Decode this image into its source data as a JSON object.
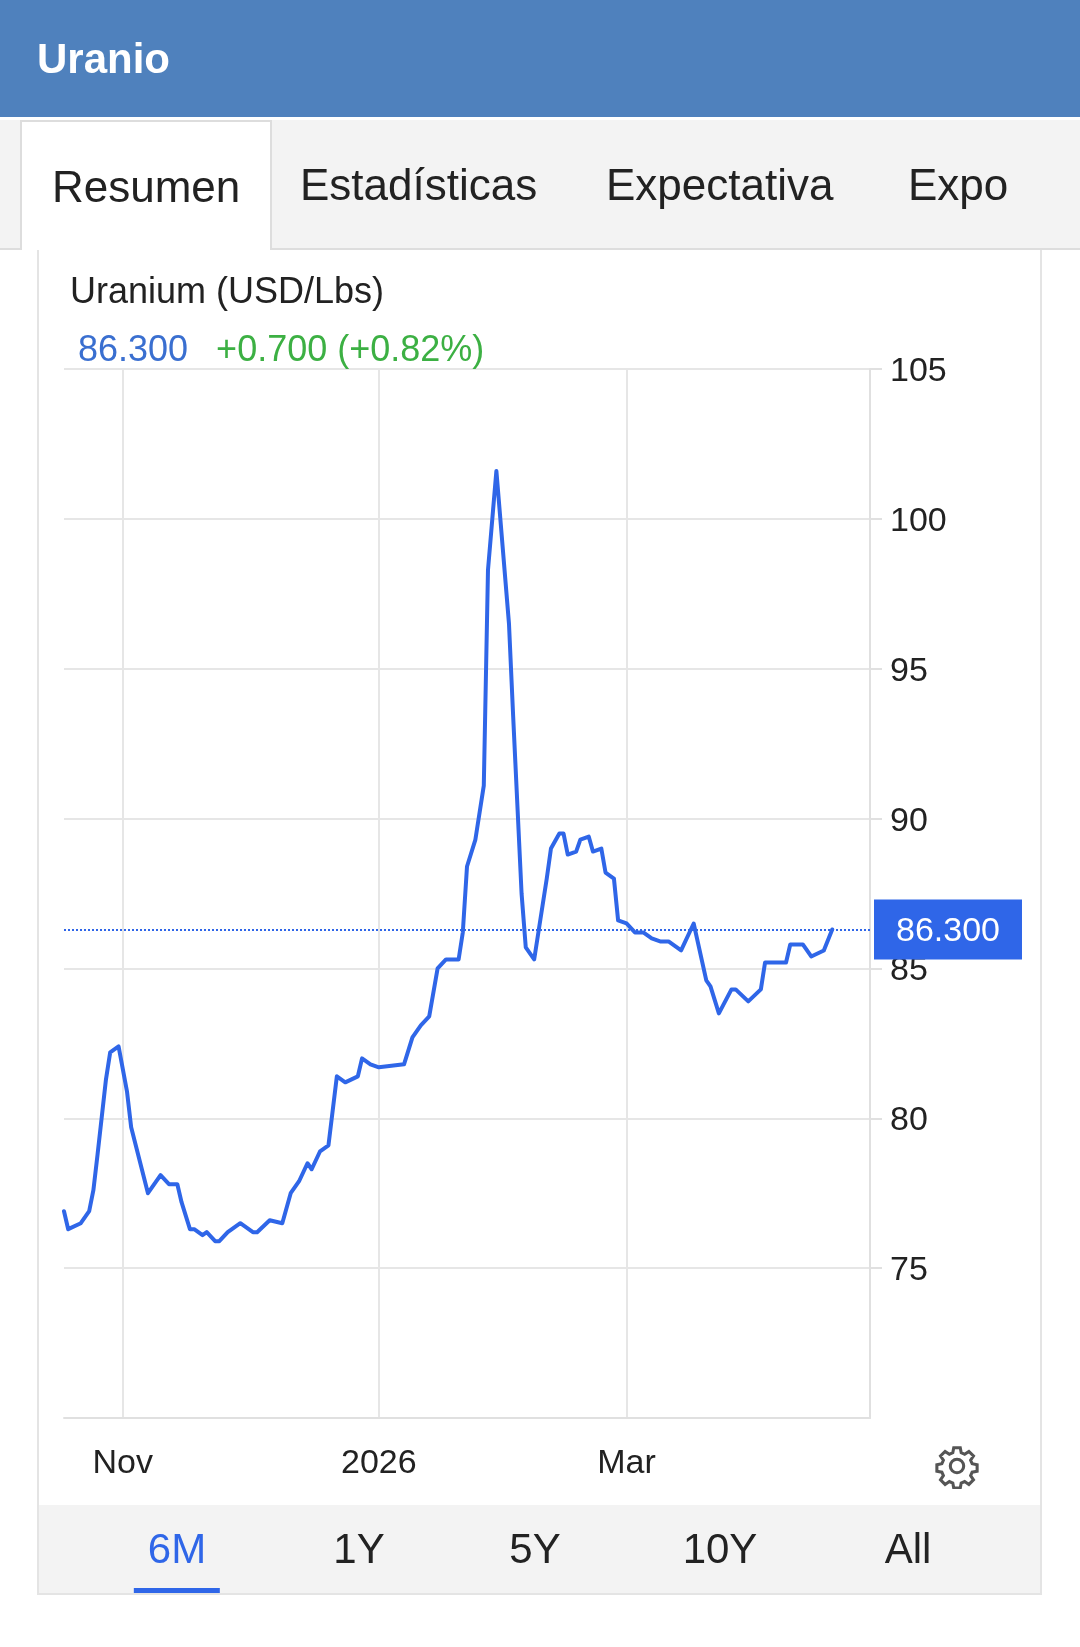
{
  "chart_data": {
    "type": "line",
    "title": "Uranio",
    "subtitle": "Uranium (USD/Lbs)",
    "annotations": [
      "86.300",
      "+0.700 (+0.82%)",
      "Resumen",
      "Estadísticas",
      "Expectativa",
      "Expo",
      "6M",
      "1Y",
      "5Y",
      "10Y",
      "All"
    ],
    "x": [
      "2025-10-18",
      "2025-10-19",
      "2025-10-22",
      "2025-10-24",
      "2025-10-25",
      "2025-10-26",
      "2025-10-28",
      "2025-10-29",
      "2025-10-31",
      "2025-11-02",
      "2025-11-03",
      "2025-11-07",
      "2025-11-09",
      "2025-11-10",
      "2025-11-12",
      "2025-11-14",
      "2025-11-15",
      "2025-11-17",
      "2025-11-18",
      "2025-11-20",
      "2025-11-21",
      "2025-11-23",
      "2025-11-24",
      "2025-11-26",
      "2025-11-29",
      "2025-11-30",
      "2025-12-02",
      "2025-12-03",
      "2025-12-06",
      "2025-12-09",
      "2025-12-11",
      "2025-12-13",
      "2025-12-15",
      "2025-12-16",
      "2025-12-18",
      "2025-12-20",
      "2025-12-22",
      "2025-12-24",
      "2025-12-27",
      "2025-12-28",
      "2025-12-30",
      "2026-01-01",
      "2026-01-07",
      "2026-01-09",
      "2026-01-11",
      "2026-01-13",
      "2026-01-15",
      "2026-01-17",
      "2026-01-20",
      "2026-01-21",
      "2026-01-22",
      "2026-01-24",
      "2026-01-26",
      "2026-01-27",
      "2026-01-29",
      "2026-02-01",
      "2026-02-02",
      "2026-02-04",
      "2026-02-05",
      "2026-02-07",
      "2026-02-08",
      "2026-02-10",
      "2026-02-11",
      "2026-02-13",
      "2026-02-14",
      "2026-02-15",
      "2026-02-17",
      "2026-02-18",
      "2026-02-20",
      "2026-02-21",
      "2026-02-23",
      "2026-02-24",
      "2026-02-26",
      "2026-02-27",
      "2026-03-01",
      "2026-03-03",
      "2026-03-05",
      "2026-03-07",
      "2026-03-09",
      "2026-03-11",
      "2026-03-13",
      "2026-03-14",
      "2026-03-17",
      "2026-03-20",
      "2026-03-21",
      "2026-03-23",
      "2026-03-26",
      "2026-03-27",
      "2026-03-30",
      "2026-04-02",
      "2026-04-03",
      "2026-04-08",
      "2026-04-09",
      "2026-04-12",
      "2026-04-14",
      "2026-04-17",
      "2026-04-19"
    ],
    "series": [
      {
        "color": "#2f66e8",
        "values": [
          76.9,
          76.3,
          76.5,
          76.9,
          77.6,
          78.8,
          81.3,
          82.2,
          82.4,
          80.9,
          79.7,
          77.5,
          77.9,
          78.1,
          77.8,
          77.8,
          77.2,
          76.3,
          76.3,
          76.1,
          76.2,
          75.9,
          75.9,
          76.2,
          76.5,
          76.4,
          76.2,
          76.2,
          76.6,
          76.5,
          77.5,
          77.9,
          78.5,
          78.3,
          78.9,
          79.1,
          81.4,
          81.2,
          81.4,
          82.0,
          81.8,
          81.7,
          81.8,
          82.7,
          83.1,
          83.4,
          85.0,
          85.3,
          85.3,
          86.2,
          88.4,
          89.3,
          91.1,
          98.3,
          101.6,
          96.5,
          93.4,
          87.5,
          85.7,
          85.3,
          86.2,
          88.0,
          89.0,
          89.5,
          89.5,
          88.8,
          88.9,
          89.3,
          89.4,
          88.9,
          89.0,
          88.2,
          88.0,
          86.6,
          86.5,
          86.2,
          86.2,
          86.0,
          85.9,
          85.9,
          85.7,
          85.6,
          86.5,
          84.6,
          84.4,
          83.5,
          84.3,
          84.3,
          83.9,
          84.3,
          85.2,
          85.2,
          85.8,
          85.8,
          85.4,
          85.6,
          86.3
        ]
      }
    ],
    "xlim": [
      "2025-10-18",
      "2026-04-28"
    ],
    "xticks": [
      {
        "value": "2025-11-01",
        "label": "Nov"
      },
      {
        "value": "2026-01-01",
        "label": "2026"
      },
      {
        "value": "2026-03-01",
        "label": "Mar"
      }
    ],
    "ylim": [
      70,
      105
    ],
    "yticks": [
      75,
      80,
      85,
      90,
      95,
      100,
      105
    ],
    "ref_lines": [
      {
        "axis": "y",
        "value": 86.3,
        "label": "86.300",
        "color": "#2f66e8",
        "line_style": "dotted"
      }
    ],
    "grid": true,
    "marker": "none",
    "line_style": "solid"
  }
}
